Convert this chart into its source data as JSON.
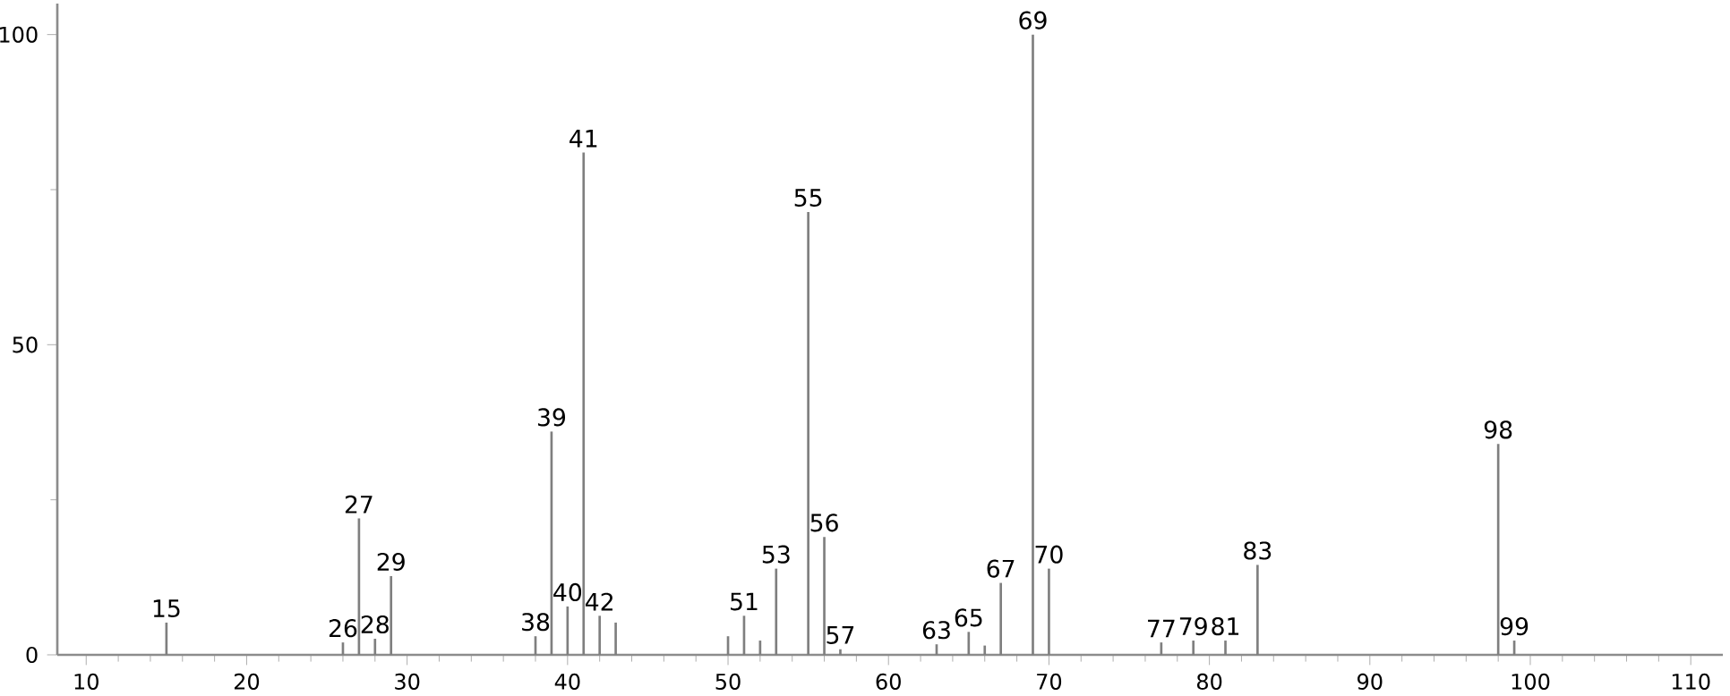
{
  "chart_data": {
    "type": "bar",
    "color": "#7f7f7f",
    "x": [
      15,
      26,
      27,
      28,
      29,
      38,
      39,
      40,
      41,
      42,
      43,
      50,
      51,
      52,
      53,
      55,
      56,
      57,
      63,
      65,
      66,
      67,
      69,
      70,
      77,
      79,
      81,
      83,
      98,
      99
    ],
    "values": [
      5.2,
      2,
      22,
      2.6,
      12.7,
      3,
      36,
      7.8,
      81,
      6.3,
      5.2,
      3,
      6.3,
      2.3,
      13.9,
      71.4,
      19,
      0.9,
      1.7,
      3.7,
      1.5,
      11.6,
      100,
      13.9,
      2,
      2.3,
      2.3,
      14.5,
      34,
      2.3
    ],
    "xlim": [
      8.2,
      112
    ],
    "ylim": [
      0,
      105
    ],
    "xticks": [
      10,
      20,
      30,
      40,
      50,
      60,
      70,
      80,
      90,
      100,
      110
    ],
    "yticks": [
      0,
      50,
      100
    ],
    "annotations": [
      {
        "text": "15",
        "x": 15,
        "y": 5.2
      },
      {
        "text": "26",
        "x": 26,
        "y": 2
      },
      {
        "text": "27",
        "x": 27,
        "y": 22
      },
      {
        "text": "28",
        "x": 28,
        "y": 2.6
      },
      {
        "text": "29",
        "x": 29,
        "y": 12.7
      },
      {
        "text": "38",
        "x": 38,
        "y": 3
      },
      {
        "text": "39",
        "x": 39,
        "y": 36
      },
      {
        "text": "40",
        "x": 40,
        "y": 7.8
      },
      {
        "text": "41",
        "x": 41,
        "y": 81
      },
      {
        "text": "42",
        "x": 42,
        "y": 6.3
      },
      {
        "text": "51",
        "x": 51,
        "y": 6.3
      },
      {
        "text": "53",
        "x": 53,
        "y": 13.9
      },
      {
        "text": "55",
        "x": 55,
        "y": 71.4
      },
      {
        "text": "56",
        "x": 56,
        "y": 19
      },
      {
        "text": "57",
        "x": 57,
        "y": 0.9
      },
      {
        "text": "63",
        "x": 63,
        "y": 1.7
      },
      {
        "text": "65",
        "x": 65,
        "y": 3.7
      },
      {
        "text": "67",
        "x": 67,
        "y": 11.6
      },
      {
        "text": "69",
        "x": 69,
        "y": 100
      },
      {
        "text": "70",
        "x": 70,
        "y": 13.9
      },
      {
        "text": "77",
        "x": 77,
        "y": 2
      },
      {
        "text": "79",
        "x": 79,
        "y": 2.3
      },
      {
        "text": "81",
        "x": 81,
        "y": 2.3
      },
      {
        "text": "83",
        "x": 83,
        "y": 14.5
      },
      {
        "text": "98",
        "x": 98,
        "y": 34
      },
      {
        "text": "99",
        "x": 99,
        "y": 2.3
      }
    ]
  }
}
